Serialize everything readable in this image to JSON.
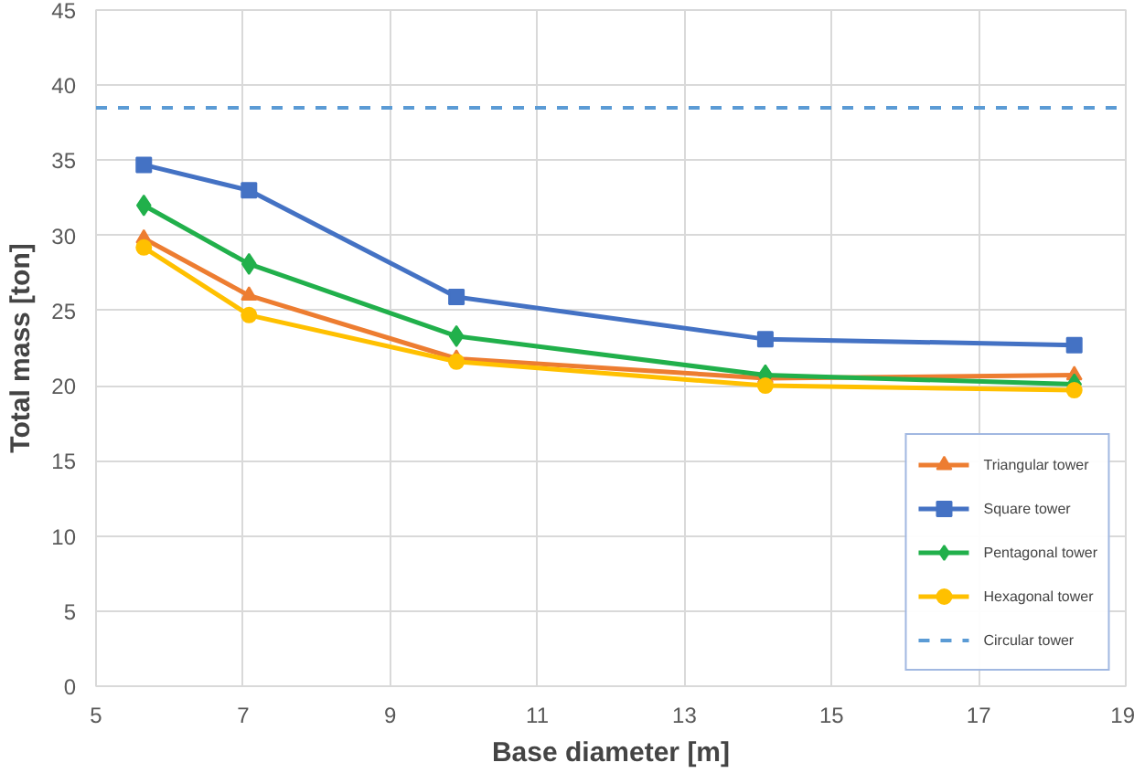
{
  "chart_data": {
    "type": "line",
    "xlabel": "Base diameter [m]",
    "ylabel": "Total mass [ton]",
    "x": [
      5.65,
      7.08,
      9.9,
      14.1,
      18.3
    ],
    "series": [
      {
        "name": "Triangular tower",
        "color": "#ed7d31",
        "marker": "triangle",
        "values": [
          29.8,
          26.0,
          21.8,
          20.5,
          20.7
        ]
      },
      {
        "name": "Square tower",
        "color": "#4472c4",
        "marker": "square",
        "values": [
          34.7,
          33.0,
          25.9,
          23.1,
          22.7
        ]
      },
      {
        "name": "Pentagonal tower",
        "color": "#21b04b",
        "marker": "diamond",
        "values": [
          32.0,
          28.1,
          23.3,
          20.7,
          20.1
        ]
      },
      {
        "name": "Hexagonal tower",
        "color": "#ffc000",
        "marker": "circle",
        "values": [
          29.2,
          24.7,
          21.6,
          20.0,
          19.7
        ]
      }
    ],
    "ref_lines": [
      {
        "axis": "y",
        "value": 38.5,
        "label": "Circular tower",
        "color": "#5b9bd5",
        "line_style": "dashed"
      }
    ],
    "xlim": [
      5,
      19
    ],
    "xticks": [
      5,
      7,
      9,
      11,
      13,
      15,
      17,
      19
    ],
    "ylim": [
      0,
      45
    ],
    "yticks": [
      0,
      5,
      10,
      15,
      20,
      25,
      30,
      35,
      40,
      45
    ],
    "grid": true,
    "legend": "bottom right",
    "line_style": "solid"
  }
}
